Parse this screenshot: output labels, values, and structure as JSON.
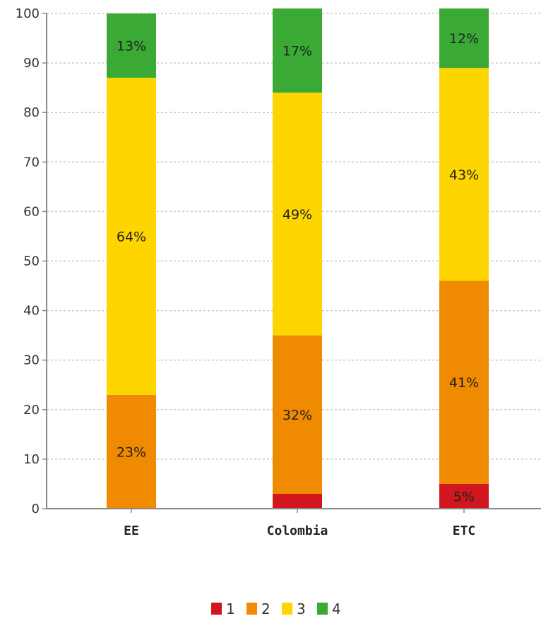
{
  "chart_data": {
    "type": "bar",
    "stacked": true,
    "categories": [
      "EE",
      "Colombia",
      "ETC"
    ],
    "series": [
      {
        "name": "1",
        "color": "#d2161e",
        "values": [
          0,
          3,
          5
        ],
        "labels": [
          "",
          "",
          "5%"
        ]
      },
      {
        "name": "2",
        "color": "#f08a00",
        "values": [
          23,
          32,
          41
        ],
        "labels": [
          "23%",
          "32%",
          "41%"
        ]
      },
      {
        "name": "3",
        "color": "#ffd500",
        "values": [
          64,
          49,
          43
        ],
        "labels": [
          "64%",
          "49%",
          "43%"
        ]
      },
      {
        "name": "4",
        "color": "#3aaa35",
        "values": [
          13,
          17,
          12
        ],
        "labels": [
          "13%",
          "17%",
          "12%"
        ]
      }
    ],
    "ylim": [
      0,
      100
    ],
    "yticks": [
      "0",
      "10",
      "20",
      "30",
      "40",
      "50",
      "60",
      "70",
      "80",
      "90",
      "100"
    ],
    "grid": true,
    "legend_position": "bottom-center"
  }
}
